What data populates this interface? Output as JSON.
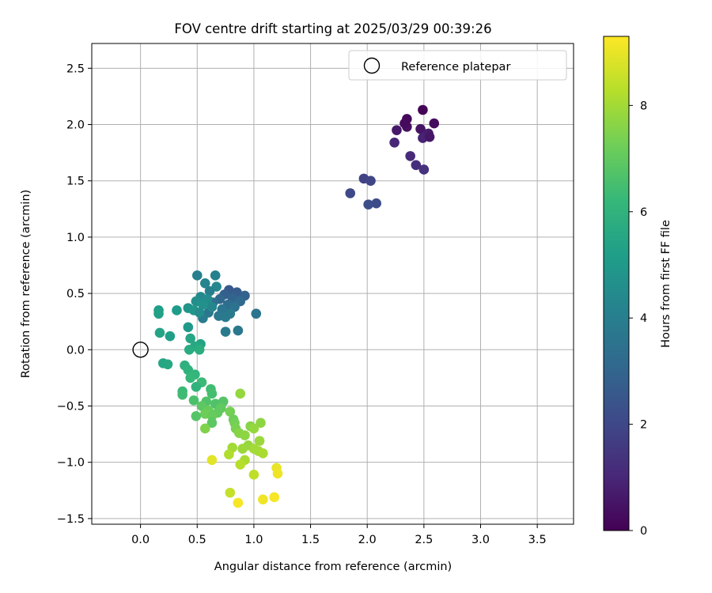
{
  "chart_data": {
    "type": "scatter",
    "title": "FOV centre drift starting at 2025/03/29 00:39:26",
    "xlabel": "Angular distance from reference (arcmin)",
    "ylabel": "Rotation from reference (arcmin)",
    "xlim": [
      -0.43,
      3.82
    ],
    "ylim": [
      -1.55,
      2.72
    ],
    "x_ticks": [
      0.0,
      0.5,
      1.0,
      1.5,
      2.0,
      2.5,
      3.0,
      3.5
    ],
    "x_tick_labels": [
      "0.0",
      "0.5",
      "1.0",
      "1.5",
      "2.0",
      "2.5",
      "3.0",
      "3.5"
    ],
    "y_ticks": [
      -1.5,
      -1.0,
      -0.5,
      0.0,
      0.5,
      1.0,
      1.5,
      2.0,
      2.5
    ],
    "y_tick_labels": [
      "−1.5",
      "−1.0",
      "−0.5",
      "0.0",
      "0.5",
      "1.0",
      "1.5",
      "2.0",
      "2.5"
    ],
    "grid": true,
    "legend": {
      "placement": "top-right",
      "entries": [
        "Reference platepar"
      ]
    },
    "reference_point": {
      "name": "Reference platepar",
      "x": 0.0,
      "y": 0.0,
      "marker": "open-circle"
    },
    "colorbar": {
      "label": "Hours from first FF file",
      "range": [
        0,
        9.3
      ],
      "ticks": [
        0,
        2,
        4,
        6,
        8
      ],
      "tick_labels": [
        "0",
        "2",
        "4",
        "6",
        "8"
      ],
      "colormap": "viridis"
    },
    "colormap_stops": [
      "#440154",
      "#482878",
      "#3e4a89",
      "#31688e",
      "#26828e",
      "#1f9e89",
      "#35b779",
      "#6ece58",
      "#b5de2b",
      "#fde725"
    ],
    "points": [
      [
        2.49,
        2.13,
        0.1
      ],
      [
        2.35,
        2.05,
        0.2
      ],
      [
        2.59,
        2.01,
        0.3
      ],
      [
        2.35,
        1.98,
        0.4
      ],
      [
        2.47,
        1.96,
        0.5
      ],
      [
        2.26,
        1.95,
        0.6
      ],
      [
        2.54,
        1.92,
        0.7
      ],
      [
        2.51,
        1.9,
        0.8
      ],
      [
        2.49,
        1.88,
        0.9
      ],
      [
        2.24,
        1.84,
        1.0
      ],
      [
        2.38,
        1.72,
        1.1
      ],
      [
        2.43,
        1.64,
        1.2
      ],
      [
        2.5,
        1.6,
        1.3
      ],
      [
        2.33,
        2.01,
        0.25
      ],
      [
        2.55,
        1.89,
        0.55
      ],
      [
        1.97,
        1.52,
        1.8
      ],
      [
        2.03,
        1.5,
        1.9
      ],
      [
        1.85,
        1.39,
        2.0
      ],
      [
        2.08,
        1.3,
        2.1
      ],
      [
        2.01,
        1.29,
        2.2
      ],
      [
        0.78,
        0.53,
        2.6
      ],
      [
        0.85,
        0.51,
        2.7
      ],
      [
        0.74,
        0.49,
        2.8
      ],
      [
        0.92,
        0.48,
        2.9
      ],
      [
        0.81,
        0.46,
        3.0
      ],
      [
        0.7,
        0.45,
        3.1
      ],
      [
        0.88,
        0.43,
        3.2
      ],
      [
        0.77,
        0.4,
        3.3
      ],
      [
        0.64,
        0.42,
        3.4
      ],
      [
        0.83,
        0.38,
        3.5
      ],
      [
        0.72,
        0.36,
        3.6
      ],
      [
        0.6,
        0.33,
        3.7
      ],
      [
        0.79,
        0.32,
        3.8
      ],
      [
        1.02,
        0.32,
        3.6
      ],
      [
        0.69,
        0.3,
        3.7
      ],
      [
        0.75,
        0.29,
        3.8
      ],
      [
        0.55,
        0.28,
        3.9
      ],
      [
        0.86,
        0.17,
        3.7
      ],
      [
        0.75,
        0.16,
        3.8
      ],
      [
        0.5,
        0.66,
        4.0
      ],
      [
        0.66,
        0.66,
        4.1
      ],
      [
        0.57,
        0.59,
        4.2
      ],
      [
        0.67,
        0.56,
        4.3
      ],
      [
        0.61,
        0.52,
        4.0
      ],
      [
        0.53,
        0.47,
        4.4
      ],
      [
        0.59,
        0.45,
        4.5
      ],
      [
        0.49,
        0.43,
        4.6
      ],
      [
        0.55,
        0.4,
        4.7
      ],
      [
        0.42,
        0.37,
        4.8
      ],
      [
        0.63,
        0.38,
        4.3
      ],
      [
        0.47,
        0.35,
        4.9
      ],
      [
        0.52,
        0.33,
        4.5
      ],
      [
        0.32,
        0.35,
        5.1
      ],
      [
        0.16,
        0.35,
        5.2
      ],
      [
        0.16,
        0.32,
        5.3
      ],
      [
        0.42,
        0.2,
        5.0
      ],
      [
        0.17,
        0.15,
        5.4
      ],
      [
        0.26,
        0.12,
        5.2
      ],
      [
        0.44,
        0.1,
        5.5
      ],
      [
        0.53,
        0.05,
        5.4
      ],
      [
        0.48,
        0.03,
        5.6
      ],
      [
        0.43,
        0.0,
        5.7
      ],
      [
        0.52,
        0.0,
        5.8
      ],
      [
        0.2,
        -0.12,
        5.5
      ],
      [
        0.24,
        -0.13,
        5.6
      ],
      [
        0.39,
        -0.14,
        5.9
      ],
      [
        0.42,
        -0.18,
        6.0
      ],
      [
        0.48,
        -0.22,
        6.1
      ],
      [
        0.44,
        -0.25,
        6.2
      ],
      [
        0.54,
        -0.29,
        6.3
      ],
      [
        0.49,
        -0.33,
        6.0
      ],
      [
        0.62,
        -0.35,
        6.4
      ],
      [
        0.63,
        -0.39,
        6.5
      ],
      [
        0.37,
        -0.37,
        6.3
      ],
      [
        0.37,
        -0.4,
        6.4
      ],
      [
        0.47,
        -0.45,
        6.6
      ],
      [
        0.58,
        -0.46,
        6.7
      ],
      [
        0.73,
        -0.46,
        6.8
      ],
      [
        0.66,
        -0.48,
        6.7
      ],
      [
        0.54,
        -0.5,
        6.9
      ],
      [
        0.71,
        -0.52,
        7.0
      ],
      [
        0.6,
        -0.54,
        7.1
      ],
      [
        0.79,
        -0.55,
        7.3
      ],
      [
        0.68,
        -0.56,
        7.0
      ],
      [
        0.57,
        -0.57,
        7.2
      ],
      [
        0.49,
        -0.59,
        6.8
      ],
      [
        0.63,
        -0.59,
        7.1
      ],
      [
        0.82,
        -0.62,
        7.2
      ],
      [
        0.83,
        -0.65,
        7.3
      ],
      [
        0.63,
        -0.65,
        6.9
      ],
      [
        0.84,
        -0.7,
        7.4
      ],
      [
        0.57,
        -0.7,
        7.5
      ],
      [
        0.87,
        -0.74,
        7.6
      ],
      [
        0.92,
        -0.76,
        7.7
      ],
      [
        0.88,
        -0.39,
        7.8
      ],
      [
        0.97,
        -0.68,
        7.6
      ],
      [
        1.06,
        -0.65,
        7.7
      ],
      [
        1.0,
        -0.7,
        7.8
      ],
      [
        0.95,
        -0.85,
        7.8
      ],
      [
        1.05,
        -0.81,
        7.9
      ],
      [
        1.0,
        -0.88,
        8.0
      ],
      [
        0.9,
        -0.88,
        7.9
      ],
      [
        1.04,
        -0.9,
        8.0
      ],
      [
        1.08,
        -0.92,
        8.1
      ],
      [
        0.81,
        -0.87,
        8.0
      ],
      [
        0.78,
        -0.93,
        8.2
      ],
      [
        0.92,
        -0.98,
        8.1
      ],
      [
        0.88,
        -1.02,
        8.3
      ],
      [
        1.0,
        -1.11,
        8.4
      ],
      [
        0.79,
        -1.27,
        8.5
      ],
      [
        0.63,
        -0.98,
        8.9
      ],
      [
        1.2,
        -1.05,
        9.0
      ],
      [
        1.21,
        -1.1,
        9.1
      ],
      [
        1.18,
        -1.31,
        9.2
      ],
      [
        1.08,
        -1.33,
        9.1
      ],
      [
        0.86,
        -1.36,
        9.2
      ]
    ]
  }
}
